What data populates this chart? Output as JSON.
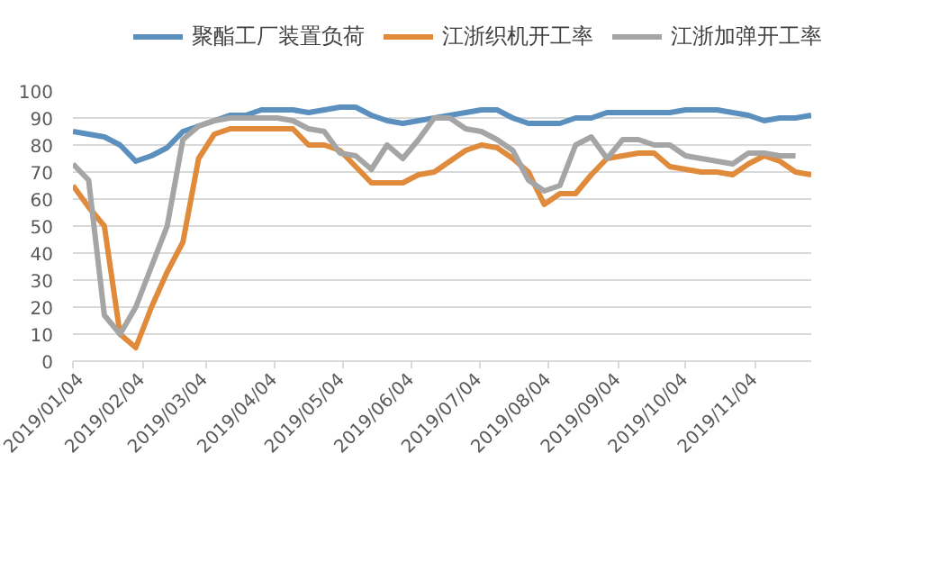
{
  "chart_data": {
    "type": "line",
    "x": [
      "2019-01-04",
      "2019-01-11",
      "2019-01-18",
      "2019-01-25",
      "2019-02-01",
      "2019-02-08",
      "2019-02-15",
      "2019-02-22",
      "2019-03-01",
      "2019-03-08",
      "2019-03-15",
      "2019-03-22",
      "2019-03-29",
      "2019-04-05",
      "2019-04-12",
      "2019-04-19",
      "2019-04-26",
      "2019-05-03",
      "2019-05-10",
      "2019-05-17",
      "2019-05-24",
      "2019-05-31",
      "2019-06-07",
      "2019-06-14",
      "2019-06-21",
      "2019-06-28",
      "2019-07-05",
      "2019-07-12",
      "2019-07-19",
      "2019-07-26",
      "2019-08-02",
      "2019-08-09",
      "2019-08-16",
      "2019-08-23",
      "2019-08-30",
      "2019-09-06",
      "2019-09-13",
      "2019-09-20",
      "2019-09-27",
      "2019-10-04",
      "2019-10-11",
      "2019-10-18",
      "2019-10-25",
      "2019-11-01",
      "2019-11-08",
      "2019-11-15",
      "2019-11-22",
      "2019-11-29"
    ],
    "series": [
      {
        "name": "聚酯工厂装置负荷",
        "color": "#5b8fbd",
        "values": [
          85,
          84,
          83,
          80,
          74,
          76,
          79,
          85,
          87,
          89,
          91,
          91,
          93,
          93,
          93,
          92,
          93,
          94,
          94,
          91,
          89,
          88,
          89,
          90,
          91,
          92,
          93,
          93,
          90,
          88,
          88,
          88,
          90,
          90,
          92,
          92,
          92,
          92,
          92,
          93,
          93,
          93,
          92,
          91,
          89,
          90,
          90,
          91
        ]
      },
      {
        "name": "江浙织机开工率",
        "color": "#e08a3c",
        "values": [
          65,
          57,
          50,
          10,
          5,
          20,
          33,
          44,
          75,
          84,
          86,
          86,
          86,
          86,
          86,
          80,
          80,
          78,
          72,
          66,
          66,
          66,
          69,
          70,
          74,
          78,
          80,
          79,
          75,
          70,
          58,
          62,
          62,
          69,
          75,
          76,
          77,
          77,
          72,
          71,
          70,
          70,
          69,
          73,
          76,
          74,
          70,
          69
        ]
      },
      {
        "name": "江浙加弹开工率",
        "color": "#a5a5a5",
        "values": [
          73,
          67,
          17,
          10,
          20,
          35,
          50,
          82,
          87,
          89,
          90,
          90,
          90,
          90,
          89,
          86,
          85,
          77,
          76,
          71,
          80,
          75,
          82,
          90,
          90,
          86,
          85,
          82,
          78,
          67,
          63,
          65,
          80,
          83,
          75,
          82,
          82,
          80,
          80,
          76,
          75,
          74,
          73,
          77,
          77,
          76,
          76,
          null
        ]
      }
    ],
    "xlim": [
      "2019-01-04",
      "2019-11-29"
    ],
    "xticks": [
      {
        "value": "2019-01-04",
        "label": "2019/01/04"
      },
      {
        "value": "2019-02-04",
        "label": "2019/02/04"
      },
      {
        "value": "2019-03-04",
        "label": "2019/03/04"
      },
      {
        "value": "2019-04-04",
        "label": "2019/04/04"
      },
      {
        "value": "2019-05-04",
        "label": "2019/05/04"
      },
      {
        "value": "2019-06-04",
        "label": "2019/06/04"
      },
      {
        "value": "2019-07-04",
        "label": "2019/07/04"
      },
      {
        "value": "2019-08-04",
        "label": "2019/08/04"
      },
      {
        "value": "2019-09-04",
        "label": "2019/09/04"
      },
      {
        "value": "2019-10-04",
        "label": "2019/10/04"
      },
      {
        "value": "2019-11-04",
        "label": "2019/11/04"
      }
    ],
    "ylim": [
      0,
      100
    ],
    "yticks": [
      0,
      10,
      20,
      30,
      40,
      50,
      60,
      70,
      80,
      90,
      100
    ],
    "grid": "y",
    "legend": "top",
    "line_style": "solid"
  }
}
